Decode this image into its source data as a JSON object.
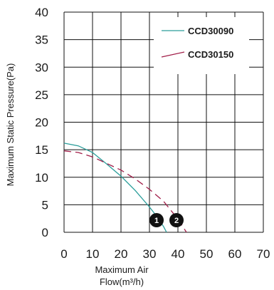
{
  "chart_data": {
    "type": "line",
    "title": "",
    "xlabel": "Maximum Air Flow(m³/h)",
    "xlabel_lines": [
      "Maximum Air",
      "Flow(m³/h)"
    ],
    "ylabel": "Maximum Static Pressure(Pa)",
    "xlim": [
      0,
      70
    ],
    "ylim": [
      0,
      40
    ],
    "x_ticks": [
      "0",
      "10",
      "20",
      "30",
      "40",
      "50",
      "60",
      "70"
    ],
    "y_ticks": [
      "0",
      "5",
      "10",
      "15",
      "20",
      "25",
      "30",
      "35",
      "40"
    ],
    "grid": true,
    "legend_position": "top-right",
    "series": [
      {
        "name": "CCD30090",
        "color": "#2a9d9a",
        "dash": "solid",
        "marker_label": "1",
        "points": [
          [
            0,
            16.2
          ],
          [
            5,
            15.7
          ],
          [
            10,
            14.5
          ],
          [
            15,
            12.4
          ],
          [
            20,
            10.2
          ],
          [
            25,
            7.6
          ],
          [
            30,
            4.6
          ],
          [
            33,
            2.6
          ],
          [
            35,
            1.0
          ],
          [
            36,
            0
          ]
        ]
      },
      {
        "name": "CCD30150",
        "color": "#a11d48",
        "dash": "dashed",
        "marker_label": "2",
        "points": [
          [
            0,
            14.8
          ],
          [
            5,
            14.5
          ],
          [
            10,
            13.7
          ],
          [
            15,
            12.5
          ],
          [
            20,
            11.3
          ],
          [
            25,
            9.7
          ],
          [
            30,
            7.8
          ],
          [
            35,
            5.6
          ],
          [
            40,
            2.4
          ],
          [
            43,
            0
          ]
        ]
      }
    ]
  }
}
